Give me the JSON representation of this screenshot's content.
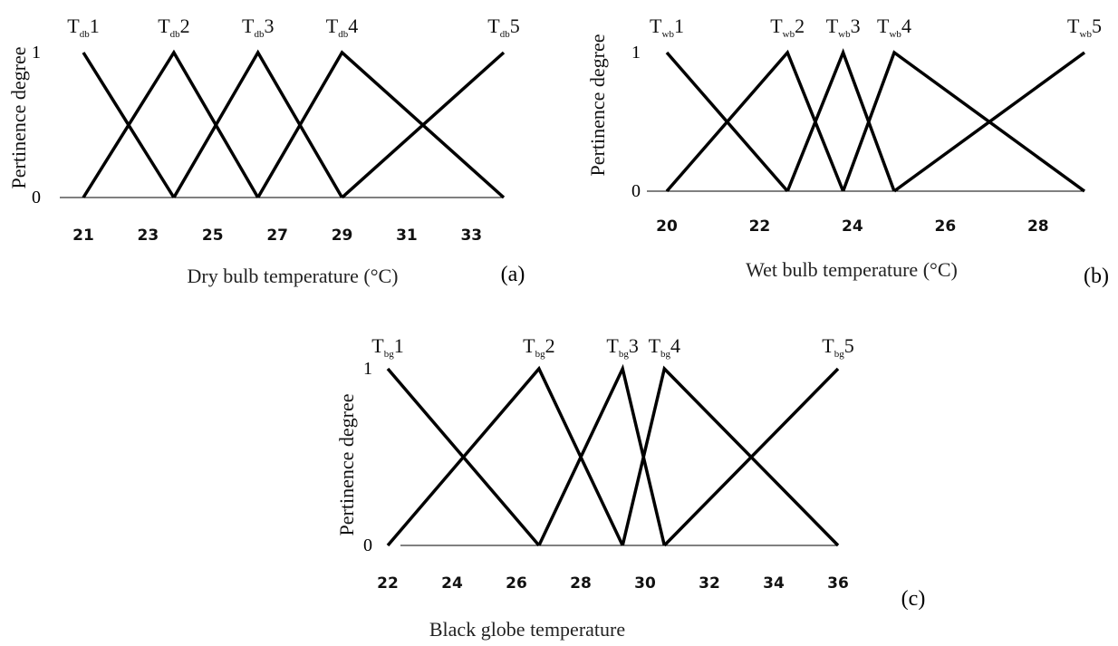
{
  "chart_data": [
    {
      "type": "line",
      "panel_label": "(a)",
      "xlabel": "Dry bulb temperature (°C)",
      "ylabel": "Pertinence degree",
      "y_ticks": [
        "0",
        "1"
      ],
      "x_ticks": [
        21,
        23,
        25,
        27,
        29,
        31,
        33
      ],
      "xlim": [
        21,
        34
      ],
      "ylim": [
        0,
        1
      ],
      "grid": false,
      "series": [
        {
          "name": "Tdb1",
          "base": "T",
          "sub": "db",
          "idx": "1",
          "x": [
            21,
            23.8
          ],
          "y": [
            1,
            0
          ]
        },
        {
          "name": "Tdb2",
          "base": "T",
          "sub": "db",
          "idx": "2",
          "x": [
            21,
            23.8,
            26.4
          ],
          "y": [
            0,
            1,
            0
          ]
        },
        {
          "name": "Tdb3",
          "base": "T",
          "sub": "db",
          "idx": "3",
          "x": [
            23.8,
            26.4,
            29
          ],
          "y": [
            0,
            1,
            0
          ]
        },
        {
          "name": "Tdb4",
          "base": "T",
          "sub": "db",
          "idx": "4",
          "x": [
            26.4,
            29,
            34
          ],
          "y": [
            0,
            1,
            0
          ]
        },
        {
          "name": "Tdb5",
          "base": "T",
          "sub": "db",
          "idx": "5",
          "x": [
            29,
            34
          ],
          "y": [
            0,
            1
          ]
        }
      ]
    },
    {
      "type": "line",
      "panel_label": "(b)",
      "xlabel": "Wet bulb temperature (°C)",
      "ylabel": "Pertinence degree",
      "y_ticks": [
        "0",
        "1"
      ],
      "x_ticks": [
        20,
        22,
        24,
        26,
        28
      ],
      "xlim": [
        20,
        29
      ],
      "ylim": [
        0,
        1
      ],
      "grid": false,
      "series": [
        {
          "name": "Twb1",
          "base": "T",
          "sub": "wb",
          "idx": "1",
          "x": [
            20,
            22.6
          ],
          "y": [
            1,
            0
          ]
        },
        {
          "name": "Twb2",
          "base": "T",
          "sub": "wb",
          "idx": "2",
          "x": [
            20,
            22.6,
            23.8
          ],
          "y": [
            0,
            1,
            0
          ]
        },
        {
          "name": "Twb3",
          "base": "T",
          "sub": "wb",
          "idx": "3",
          "x": [
            22.6,
            23.8,
            24.9
          ],
          "y": [
            0,
            1,
            0
          ]
        },
        {
          "name": "Twb4",
          "base": "T",
          "sub": "wb",
          "idx": "4",
          "x": [
            23.8,
            24.9,
            29
          ],
          "y": [
            0,
            1,
            0
          ]
        },
        {
          "name": "Twb5",
          "base": "T",
          "sub": "wb",
          "idx": "5",
          "x": [
            24.9,
            29
          ],
          "y": [
            0,
            1
          ]
        }
      ]
    },
    {
      "type": "line",
      "panel_label": "(c)",
      "xlabel": "Black globe temperature",
      "ylabel": "Pertinence degree",
      "y_ticks": [
        "0",
        "1"
      ],
      "x_ticks": [
        22,
        24,
        26,
        28,
        30,
        32,
        34,
        36
      ],
      "xlim": [
        22,
        36
      ],
      "ylim": [
        0,
        1
      ],
      "grid": false,
      "series": [
        {
          "name": "Tbg1",
          "base": "T",
          "sub": "bg",
          "idx": "1",
          "x": [
            22,
            26.7
          ],
          "y": [
            1,
            0
          ]
        },
        {
          "name": "Tbg2",
          "base": "T",
          "sub": "bg",
          "idx": "2",
          "x": [
            22,
            26.7,
            29.3
          ],
          "y": [
            0,
            1,
            0
          ]
        },
        {
          "name": "Tbg3",
          "base": "T",
          "sub": "bg",
          "idx": "3",
          "x": [
            26.7,
            29.3,
            30.6
          ],
          "y": [
            0,
            1,
            0
          ]
        },
        {
          "name": "Tbg4",
          "base": "T",
          "sub": "bg",
          "idx": "4",
          "x": [
            29.3,
            30.6,
            36
          ],
          "y": [
            0,
            1,
            0
          ]
        },
        {
          "name": "Tbg5",
          "base": "T",
          "sub": "bg",
          "idx": "5",
          "x": [
            30.6,
            36
          ],
          "y": [
            0,
            1
          ]
        }
      ]
    }
  ]
}
